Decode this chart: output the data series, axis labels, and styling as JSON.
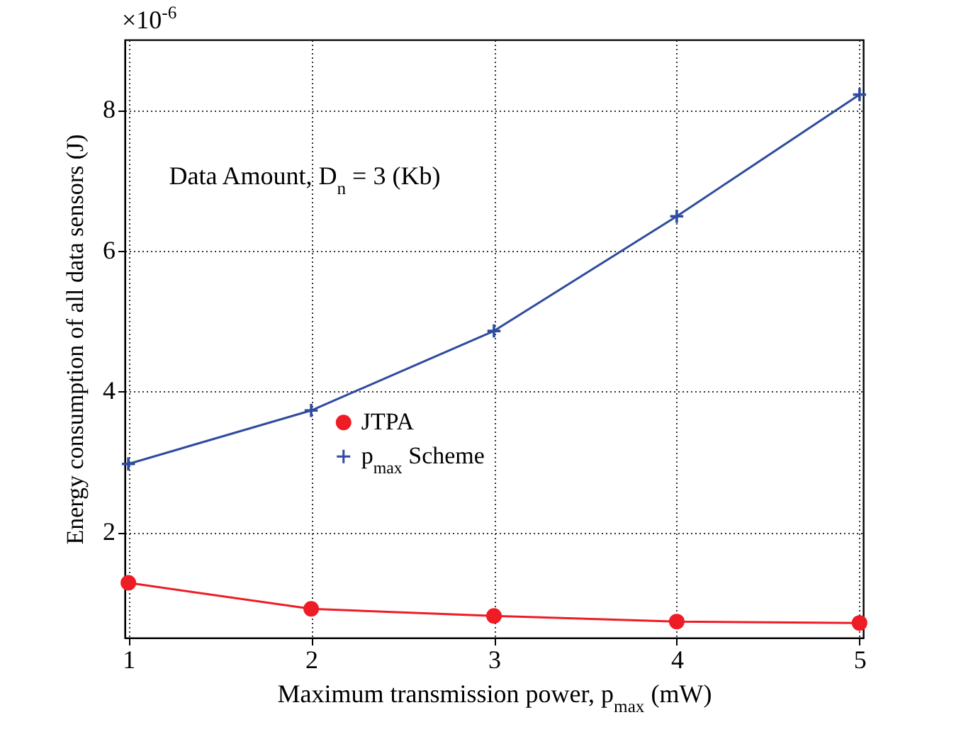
{
  "chart_data": {
    "type": "line",
    "xlabel": "Maximum transmission power, p$_{max}$ (mW)",
    "ylabel": "Energy consumption of all data sensors (J)",
    "x": [
      1,
      2,
      3,
      4,
      5
    ],
    "series": [
      {
        "name": "JTPA",
        "color": "#ee1c25",
        "marker": "circle",
        "values": [
          1.28,
          0.91,
          0.81,
          0.73,
          0.71
        ]
      },
      {
        "name": "p$_{max}$ Scheme",
        "color": "#2e4b9f",
        "marker": "cross",
        "values": [
          2.97,
          3.73,
          4.86,
          6.49,
          8.22
        ]
      }
    ],
    "xlim": [
      0.98,
      5.02
    ],
    "ylim": [
      0.5,
      9
    ],
    "xticks": [
      1,
      2,
      3,
      4,
      5
    ],
    "yticks": [
      2,
      4,
      6,
      8
    ],
    "grid": true,
    "legend": "center",
    "line_style": "solid",
    "annotations": [
      "×10$^{-6}$",
      "Data Amount, D$_{n}$ = 3 (Kb)"
    ]
  }
}
